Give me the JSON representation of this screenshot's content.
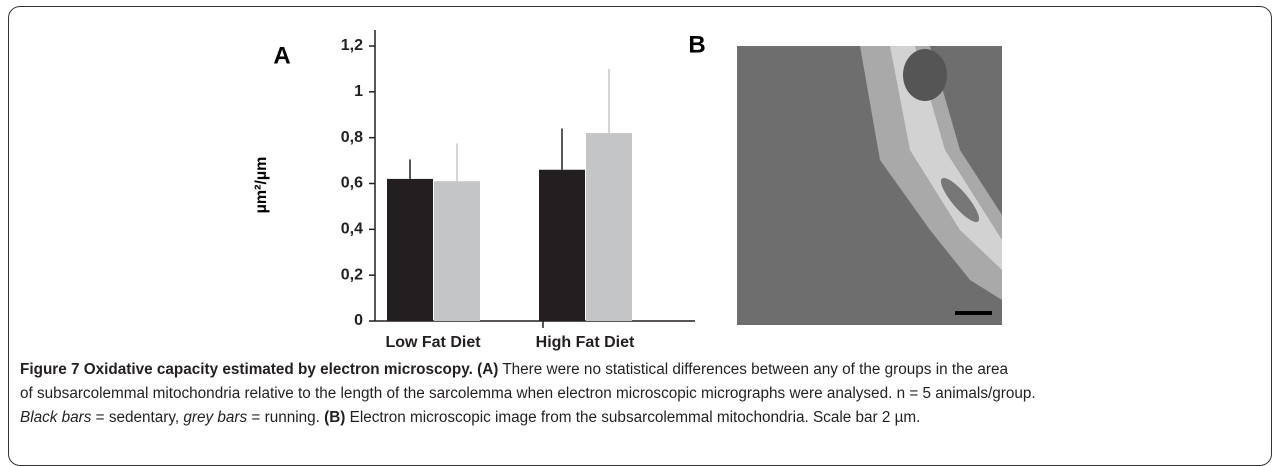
{
  "chart_data": {
    "type": "bar",
    "panel": "A",
    "y_label": "µm²/µm",
    "categories": [
      "Low Fat Diet",
      "High Fat Diet"
    ],
    "series": [
      {
        "color": "#231f20",
        "values": [
          0.62,
          0.66
        ],
        "errors": [
          0.085,
          0.18
        ]
      },
      {
        "color": "#c4c5c7",
        "values": [
          0.61,
          0.82
        ],
        "errors": [
          0.165,
          0.28
        ]
      }
    ],
    "ylim": [
      0,
      1.2
    ],
    "yticks": [
      0,
      {
        "value": 0.2,
        "label": "0,2"
      },
      {
        "value": 0.4,
        "label": "0,4"
      },
      {
        "value": 0.6,
        "label": "0,6"
      },
      {
        "value": 0.8,
        "label": "0,8"
      },
      1,
      {
        "value": 1.2,
        "label": "1,2"
      }
    ]
  },
  "image_panel": {
    "label": "B"
  },
  "caption": {
    "lines": [
      [
        "Figure 7 Oxidative capacity estimated by electron microscopy.",
        "(A)",
        " There were no statistical differences between any of the groups in the area"
      ],
      [
        "of subsarcolemmal mitochondria relative to the length of the sarcolemma when electron microscopic micrographs were analysed. n = 5 animals/group."
      ],
      [
        "Black bars",
        " = sedentary, ",
        "grey bars",
        " = running. ",
        "(B)",
        " Electron microscopic image from the subsarcolemmal mitochondria. Scale bar 2 µm."
      ]
    ]
  }
}
